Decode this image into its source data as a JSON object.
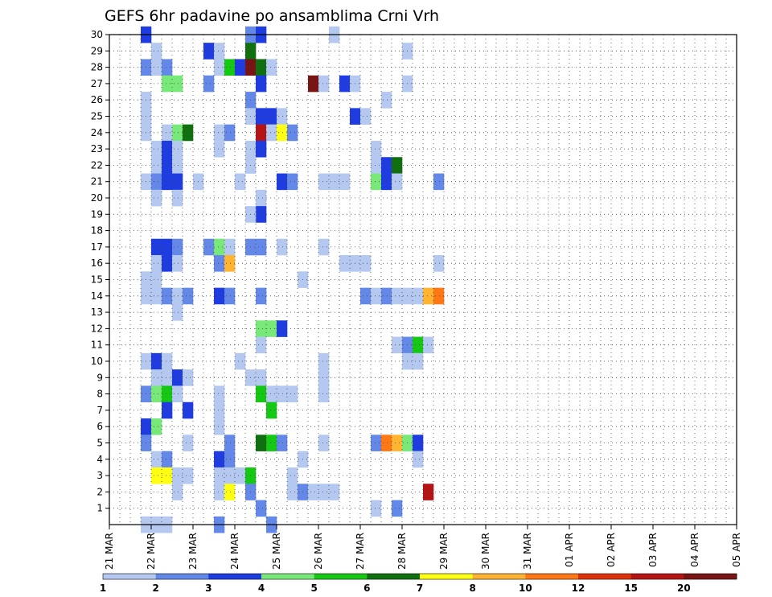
{
  "chart_data": {
    "type": "heatmap",
    "title": "GEFS 6hr padavine po ansamblima Crni Vrh",
    "xlabel": "",
    "ylabel": "",
    "x_ticks": [
      "21 MAR",
      "22 MAR",
      "23 MAR",
      "24 MAR",
      "25 MAR",
      "26 MAR",
      "27 MAR",
      "28 MAR",
      "29 MAR",
      "30 MAR",
      "31 MAR",
      "01 APR",
      "02 APR",
      "03 APR",
      "04 APR",
      "05 APR"
    ],
    "xlim": [
      0,
      60
    ],
    "x_step_hours": 6,
    "y_ticks": [
      1,
      2,
      3,
      4,
      5,
      6,
      7,
      8,
      9,
      10,
      11,
      12,
      13,
      14,
      15,
      16,
      17,
      18,
      19,
      20,
      21,
      22,
      23,
      24,
      25,
      26,
      27,
      28,
      29,
      30
    ],
    "ylim": [
      0,
      30
    ],
    "grid": true,
    "colorbar": {
      "levels": [
        "1",
        "2",
        "3",
        "4",
        "5",
        "6",
        "7",
        "8",
        "10",
        "12",
        "15",
        "20"
      ],
      "colors": [
        "#b4c8f0",
        "#6488e8",
        "#1e3ce0",
        "#78e878",
        "#14c814",
        "#107010",
        "#ffff14",
        "#ffb432",
        "#ff7814",
        "#e0320a",
        "#b41414",
        "#781414"
      ]
    },
    "cells": [
      [
        3,
        30,
        3
      ],
      [
        13,
        30,
        2
      ],
      [
        14,
        30,
        3
      ],
      [
        21,
        30,
        1
      ],
      [
        4,
        29,
        1
      ],
      [
        9,
        29,
        3
      ],
      [
        10,
        29,
        1
      ],
      [
        13,
        29,
        6
      ],
      [
        28,
        29,
        1
      ],
      [
        3,
        28,
        2
      ],
      [
        4,
        28,
        1
      ],
      [
        5,
        28,
        2
      ],
      [
        10,
        28,
        1
      ],
      [
        11,
        28,
        5
      ],
      [
        12,
        28,
        3
      ],
      [
        13,
        28,
        12
      ],
      [
        14,
        28,
        6
      ],
      [
        15,
        28,
        1
      ],
      [
        5,
        27,
        4
      ],
      [
        6,
        27,
        4
      ],
      [
        9,
        27,
        2
      ],
      [
        14,
        27,
        3
      ],
      [
        19,
        27,
        12
      ],
      [
        20,
        27,
        1
      ],
      [
        22,
        27,
        3
      ],
      [
        23,
        27,
        1
      ],
      [
        28,
        27,
        1
      ],
      [
        3,
        26,
        1
      ],
      [
        13,
        26,
        2
      ],
      [
        26,
        26,
        1
      ],
      [
        3,
        25,
        1
      ],
      [
        13,
        25,
        1
      ],
      [
        14,
        25,
        3
      ],
      [
        15,
        25,
        3
      ],
      [
        16,
        25,
        1
      ],
      [
        23,
        25,
        3
      ],
      [
        24,
        25,
        1
      ],
      [
        3,
        24,
        1
      ],
      [
        5,
        24,
        1
      ],
      [
        6,
        24,
        4
      ],
      [
        7,
        24,
        6
      ],
      [
        10,
        24,
        1
      ],
      [
        11,
        24,
        2
      ],
      [
        14,
        24,
        11
      ],
      [
        15,
        24,
        1
      ],
      [
        16,
        24,
        7
      ],
      [
        17,
        24,
        2
      ],
      [
        4,
        23,
        1
      ],
      [
        5,
        23,
        3
      ],
      [
        6,
        23,
        1
      ],
      [
        10,
        23,
        1
      ],
      [
        13,
        23,
        1
      ],
      [
        14,
        23,
        3
      ],
      [
        25,
        23,
        1
      ],
      [
        4,
        22,
        1
      ],
      [
        5,
        22,
        3
      ],
      [
        6,
        22,
        1
      ],
      [
        13,
        22,
        1
      ],
      [
        25,
        22,
        1
      ],
      [
        26,
        22,
        3
      ],
      [
        27,
        22,
        6
      ],
      [
        3,
        21,
        1
      ],
      [
        4,
        21,
        2
      ],
      [
        5,
        21,
        3
      ],
      [
        6,
        21,
        3
      ],
      [
        8,
        21,
        1
      ],
      [
        12,
        21,
        1
      ],
      [
        16,
        21,
        3
      ],
      [
        17,
        21,
        2
      ],
      [
        20,
        21,
        1
      ],
      [
        21,
        21,
        1
      ],
      [
        22,
        21,
        1
      ],
      [
        25,
        21,
        4
      ],
      [
        26,
        21,
        3
      ],
      [
        27,
        21,
        1
      ],
      [
        31,
        21,
        2
      ],
      [
        4,
        20,
        1
      ],
      [
        6,
        20,
        1
      ],
      [
        14,
        20,
        1
      ],
      [
        14,
        19,
        3
      ],
      [
        13,
        19,
        1
      ],
      [
        4,
        17,
        3
      ],
      [
        5,
        17,
        3
      ],
      [
        6,
        17,
        2
      ],
      [
        9,
        17,
        2
      ],
      [
        10,
        17,
        4
      ],
      [
        11,
        17,
        1
      ],
      [
        13,
        17,
        2
      ],
      [
        14,
        17,
        2
      ],
      [
        16,
        17,
        1
      ],
      [
        20,
        17,
        1
      ],
      [
        4,
        16,
        1
      ],
      [
        5,
        16,
        3
      ],
      [
        6,
        16,
        1
      ],
      [
        10,
        16,
        2
      ],
      [
        11,
        16,
        8
      ],
      [
        22,
        16,
        1
      ],
      [
        23,
        16,
        1
      ],
      [
        24,
        16,
        1
      ],
      [
        31,
        16,
        1
      ],
      [
        3,
        15,
        1
      ],
      [
        4,
        15,
        1
      ],
      [
        18,
        15,
        1
      ],
      [
        3,
        14,
        1
      ],
      [
        4,
        14,
        1
      ],
      [
        5,
        14,
        2
      ],
      [
        6,
        14,
        1
      ],
      [
        7,
        14,
        2
      ],
      [
        10,
        14,
        3
      ],
      [
        11,
        14,
        2
      ],
      [
        14,
        14,
        2
      ],
      [
        24,
        14,
        2
      ],
      [
        25,
        14,
        1
      ],
      [
        26,
        14,
        2
      ],
      [
        27,
        14,
        1
      ],
      [
        28,
        14,
        1
      ],
      [
        29,
        14,
        1
      ],
      [
        30,
        14,
        8
      ],
      [
        31,
        14,
        9
      ],
      [
        6,
        13,
        1
      ],
      [
        14,
        12,
        4
      ],
      [
        15,
        12,
        4
      ],
      [
        16,
        12,
        3
      ],
      [
        14,
        11,
        1
      ],
      [
        27,
        11,
        1
      ],
      [
        28,
        11,
        2
      ],
      [
        29,
        11,
        5
      ],
      [
        30,
        11,
        1
      ],
      [
        3,
        10,
        1
      ],
      [
        4,
        10,
        3
      ],
      [
        5,
        10,
        1
      ],
      [
        12,
        10,
        1
      ],
      [
        20,
        10,
        1
      ],
      [
        28,
        10,
        1
      ],
      [
        29,
        10,
        1
      ],
      [
        4,
        9,
        1
      ],
      [
        5,
        9,
        1
      ],
      [
        6,
        9,
        3
      ],
      [
        7,
        9,
        1
      ],
      [
        13,
        9,
        1
      ],
      [
        14,
        9,
        1
      ],
      [
        20,
        9,
        1
      ],
      [
        3,
        8,
        2
      ],
      [
        4,
        8,
        4
      ],
      [
        5,
        8,
        5
      ],
      [
        6,
        8,
        1
      ],
      [
        10,
        8,
        1
      ],
      [
        14,
        8,
        5
      ],
      [
        15,
        8,
        1
      ],
      [
        16,
        8,
        1
      ],
      [
        17,
        8,
        1
      ],
      [
        20,
        8,
        1
      ],
      [
        5,
        7,
        3
      ],
      [
        7,
        7,
        3
      ],
      [
        10,
        7,
        1
      ],
      [
        15,
        7,
        5
      ],
      [
        3,
        6,
        3
      ],
      [
        4,
        6,
        4
      ],
      [
        10,
        6,
        1
      ],
      [
        3,
        5,
        2
      ],
      [
        7,
        5,
        1
      ],
      [
        11,
        5,
        2
      ],
      [
        14,
        5,
        6
      ],
      [
        15,
        5,
        5
      ],
      [
        16,
        5,
        2
      ],
      [
        20,
        5,
        1
      ],
      [
        25,
        5,
        2
      ],
      [
        26,
        5,
        9
      ],
      [
        27,
        5,
        8
      ],
      [
        28,
        5,
        4
      ],
      [
        29,
        5,
        3
      ],
      [
        4,
        4,
        1
      ],
      [
        5,
        4,
        2
      ],
      [
        10,
        4,
        3
      ],
      [
        11,
        4,
        2
      ],
      [
        18,
        4,
        1
      ],
      [
        29,
        4,
        1
      ],
      [
        4,
        3,
        7
      ],
      [
        5,
        3,
        7
      ],
      [
        6,
        3,
        1
      ],
      [
        7,
        3,
        1
      ],
      [
        10,
        3,
        1
      ],
      [
        11,
        3,
        1
      ],
      [
        12,
        3,
        1
      ],
      [
        13,
        3,
        5
      ],
      [
        17,
        3,
        1
      ],
      [
        6,
        2,
        1
      ],
      [
        10,
        2,
        1
      ],
      [
        11,
        2,
        7
      ],
      [
        13,
        2,
        2
      ],
      [
        17,
        2,
        1
      ],
      [
        18,
        2,
        2
      ],
      [
        19,
        2,
        1
      ],
      [
        20,
        2,
        1
      ],
      [
        21,
        2,
        1
      ],
      [
        30,
        2,
        11
      ],
      [
        25,
        1,
        1
      ],
      [
        27,
        1,
        2
      ],
      [
        14,
        1,
        2
      ],
      [
        3,
        0,
        1
      ],
      [
        4,
        0,
        1
      ],
      [
        5,
        0,
        1
      ],
      [
        10,
        0,
        2
      ],
      [
        15,
        0,
        2
      ]
    ]
  }
}
